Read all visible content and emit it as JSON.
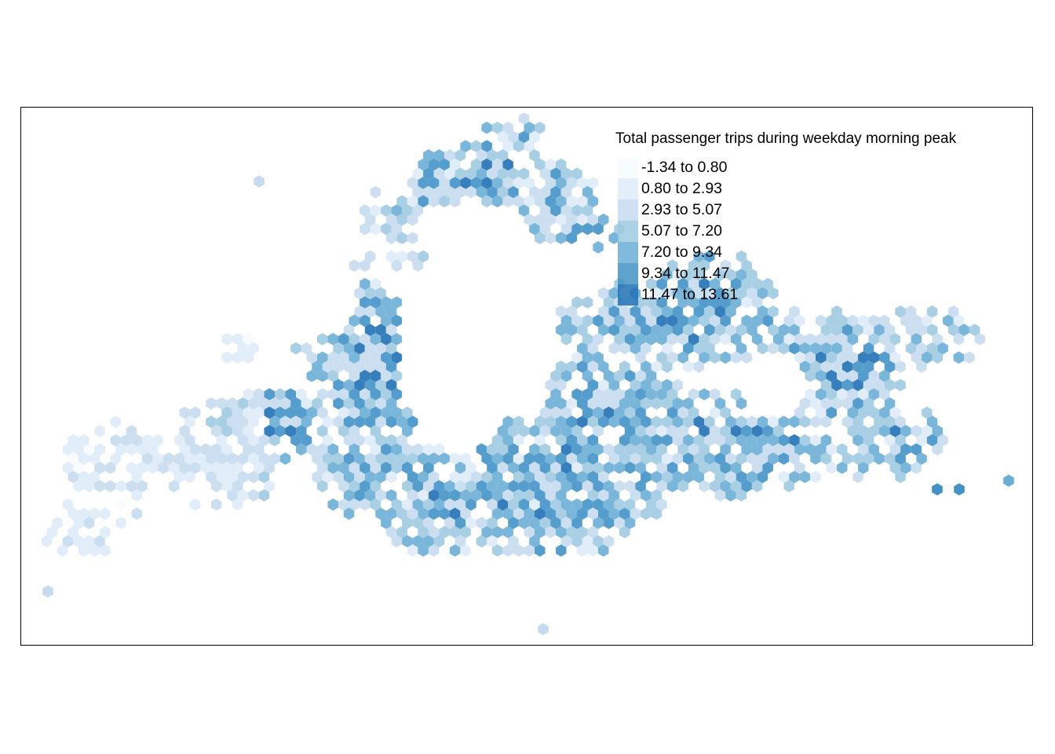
{
  "map": {
    "legend": {
      "title": "Total passenger trips during weekday morning peak",
      "classes": [
        {
          "label": "-1.34 to 0.80",
          "color": "#f7fbff"
        },
        {
          "label": "0.80 to 2.93",
          "color": "#deebf7"
        },
        {
          "label": "2.93 to 5.07",
          "color": "#c6dbef"
        },
        {
          "label": "5.07 to 7.20",
          "color": "#9ecae1"
        },
        {
          "label": "7.20 to 9.34",
          "color": "#6baed6"
        },
        {
          "label": "9.34 to 11.47",
          "color": "#4292c6"
        },
        {
          "label": "11.47 to 13.61",
          "color": "#2171b5"
        }
      ]
    }
  }
}
